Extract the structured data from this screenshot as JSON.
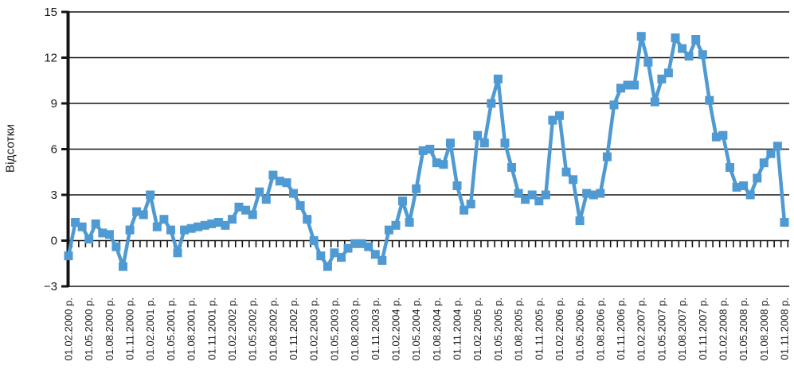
{
  "chart_data": {
    "type": "line",
    "title": "",
    "ylabel": "Відсотки",
    "xlabel": "",
    "grid": true,
    "legend": "none",
    "marker": "square",
    "line_color": "#4f9ad2",
    "text_color": "#1a1a1a",
    "grid_color": "#141414",
    "background_color": "#ffffff",
    "ylim": [
      -3,
      15
    ],
    "yticks": [
      15,
      12,
      9,
      6,
      3,
      0,
      -3
    ],
    "ytick_labels": [
      "15",
      "12",
      "9",
      "6",
      "3",
      "0",
      "−3"
    ],
    "x_interval": "monthly",
    "x_start": "01.02.2000",
    "x_end": "01.11.2008",
    "points_per_label": 3,
    "x_tick_labels": [
      "01.02.2000 р.",
      "01.05.2000 р.",
      "01.08.2000 р.",
      "01.11.2000 р.",
      "01.02.2001 р.",
      "01.05.2001 р.",
      "01.08.2001 р.",
      "01.11.2001 р.",
      "01.02.2002 р.",
      "01.05.2002 р.",
      "01.08.2002 р.",
      "01.11.2002 р.",
      "01.02.2003 р.",
      "01.05.2003 р.",
      "01.08.2003 р.",
      "01.11.2003 р.",
      "01.02.2004 р.",
      "01.05.2004 р.",
      "01.08.2004 р.",
      "01.11.2004 р.",
      "01.02.2005 р.",
      "01.05.2005 р.",
      "01.08.2005 р.",
      "01.11.2005 р.",
      "01.02.2006 р.",
      "01.05.2006 р.",
      "01.08.2006 р.",
      "01.11.2006 р.",
      "01.02.2007 р.",
      "01.05.2007 р.",
      "01.08.2007 р.",
      "01.11.2007 р.",
      "01.02.2008 р.",
      "01.05.2008 р.",
      "01.08.2008 р.",
      "01.11.2008 р."
    ],
    "values": [
      -1.0,
      1.2,
      0.9,
      0.1,
      1.1,
      0.5,
      0.4,
      -0.4,
      -1.7,
      0.7,
      1.9,
      1.7,
      3.0,
      0.9,
      1.4,
      0.7,
      -0.8,
      0.7,
      0.8,
      0.9,
      1.0,
      1.1,
      1.2,
      1.0,
      1.4,
      2.2,
      2.0,
      1.7,
      3.2,
      2.7,
      4.3,
      3.9,
      3.8,
      3.1,
      2.3,
      1.4,
      0.0,
      -1.0,
      -1.7,
      -0.8,
      -1.1,
      -0.5,
      -0.2,
      -0.2,
      -0.4,
      -0.9,
      -1.3,
      0.7,
      1.0,
      2.6,
      1.2,
      3.4,
      5.9,
      6.0,
      5.1,
      5.0,
      6.4,
      3.6,
      2.0,
      2.4,
      6.9,
      6.4,
      9.0,
      10.6,
      6.4,
      4.8,
      3.1,
      2.7,
      3.0,
      2.6,
      3.0,
      7.9,
      8.2,
      4.5,
      4.0,
      1.3,
      3.1,
      3.0,
      3.1,
      5.5,
      8.9,
      10.0,
      10.2,
      10.2,
      13.4,
      11.7,
      9.1,
      10.6,
      11.0,
      13.3,
      12.6,
      12.1,
      13.2,
      12.2,
      9.2,
      6.8,
      6.9,
      4.8,
      3.5,
      3.6,
      3.0,
      4.1,
      5.1,
      5.7,
      6.2,
      1.2
    ]
  }
}
